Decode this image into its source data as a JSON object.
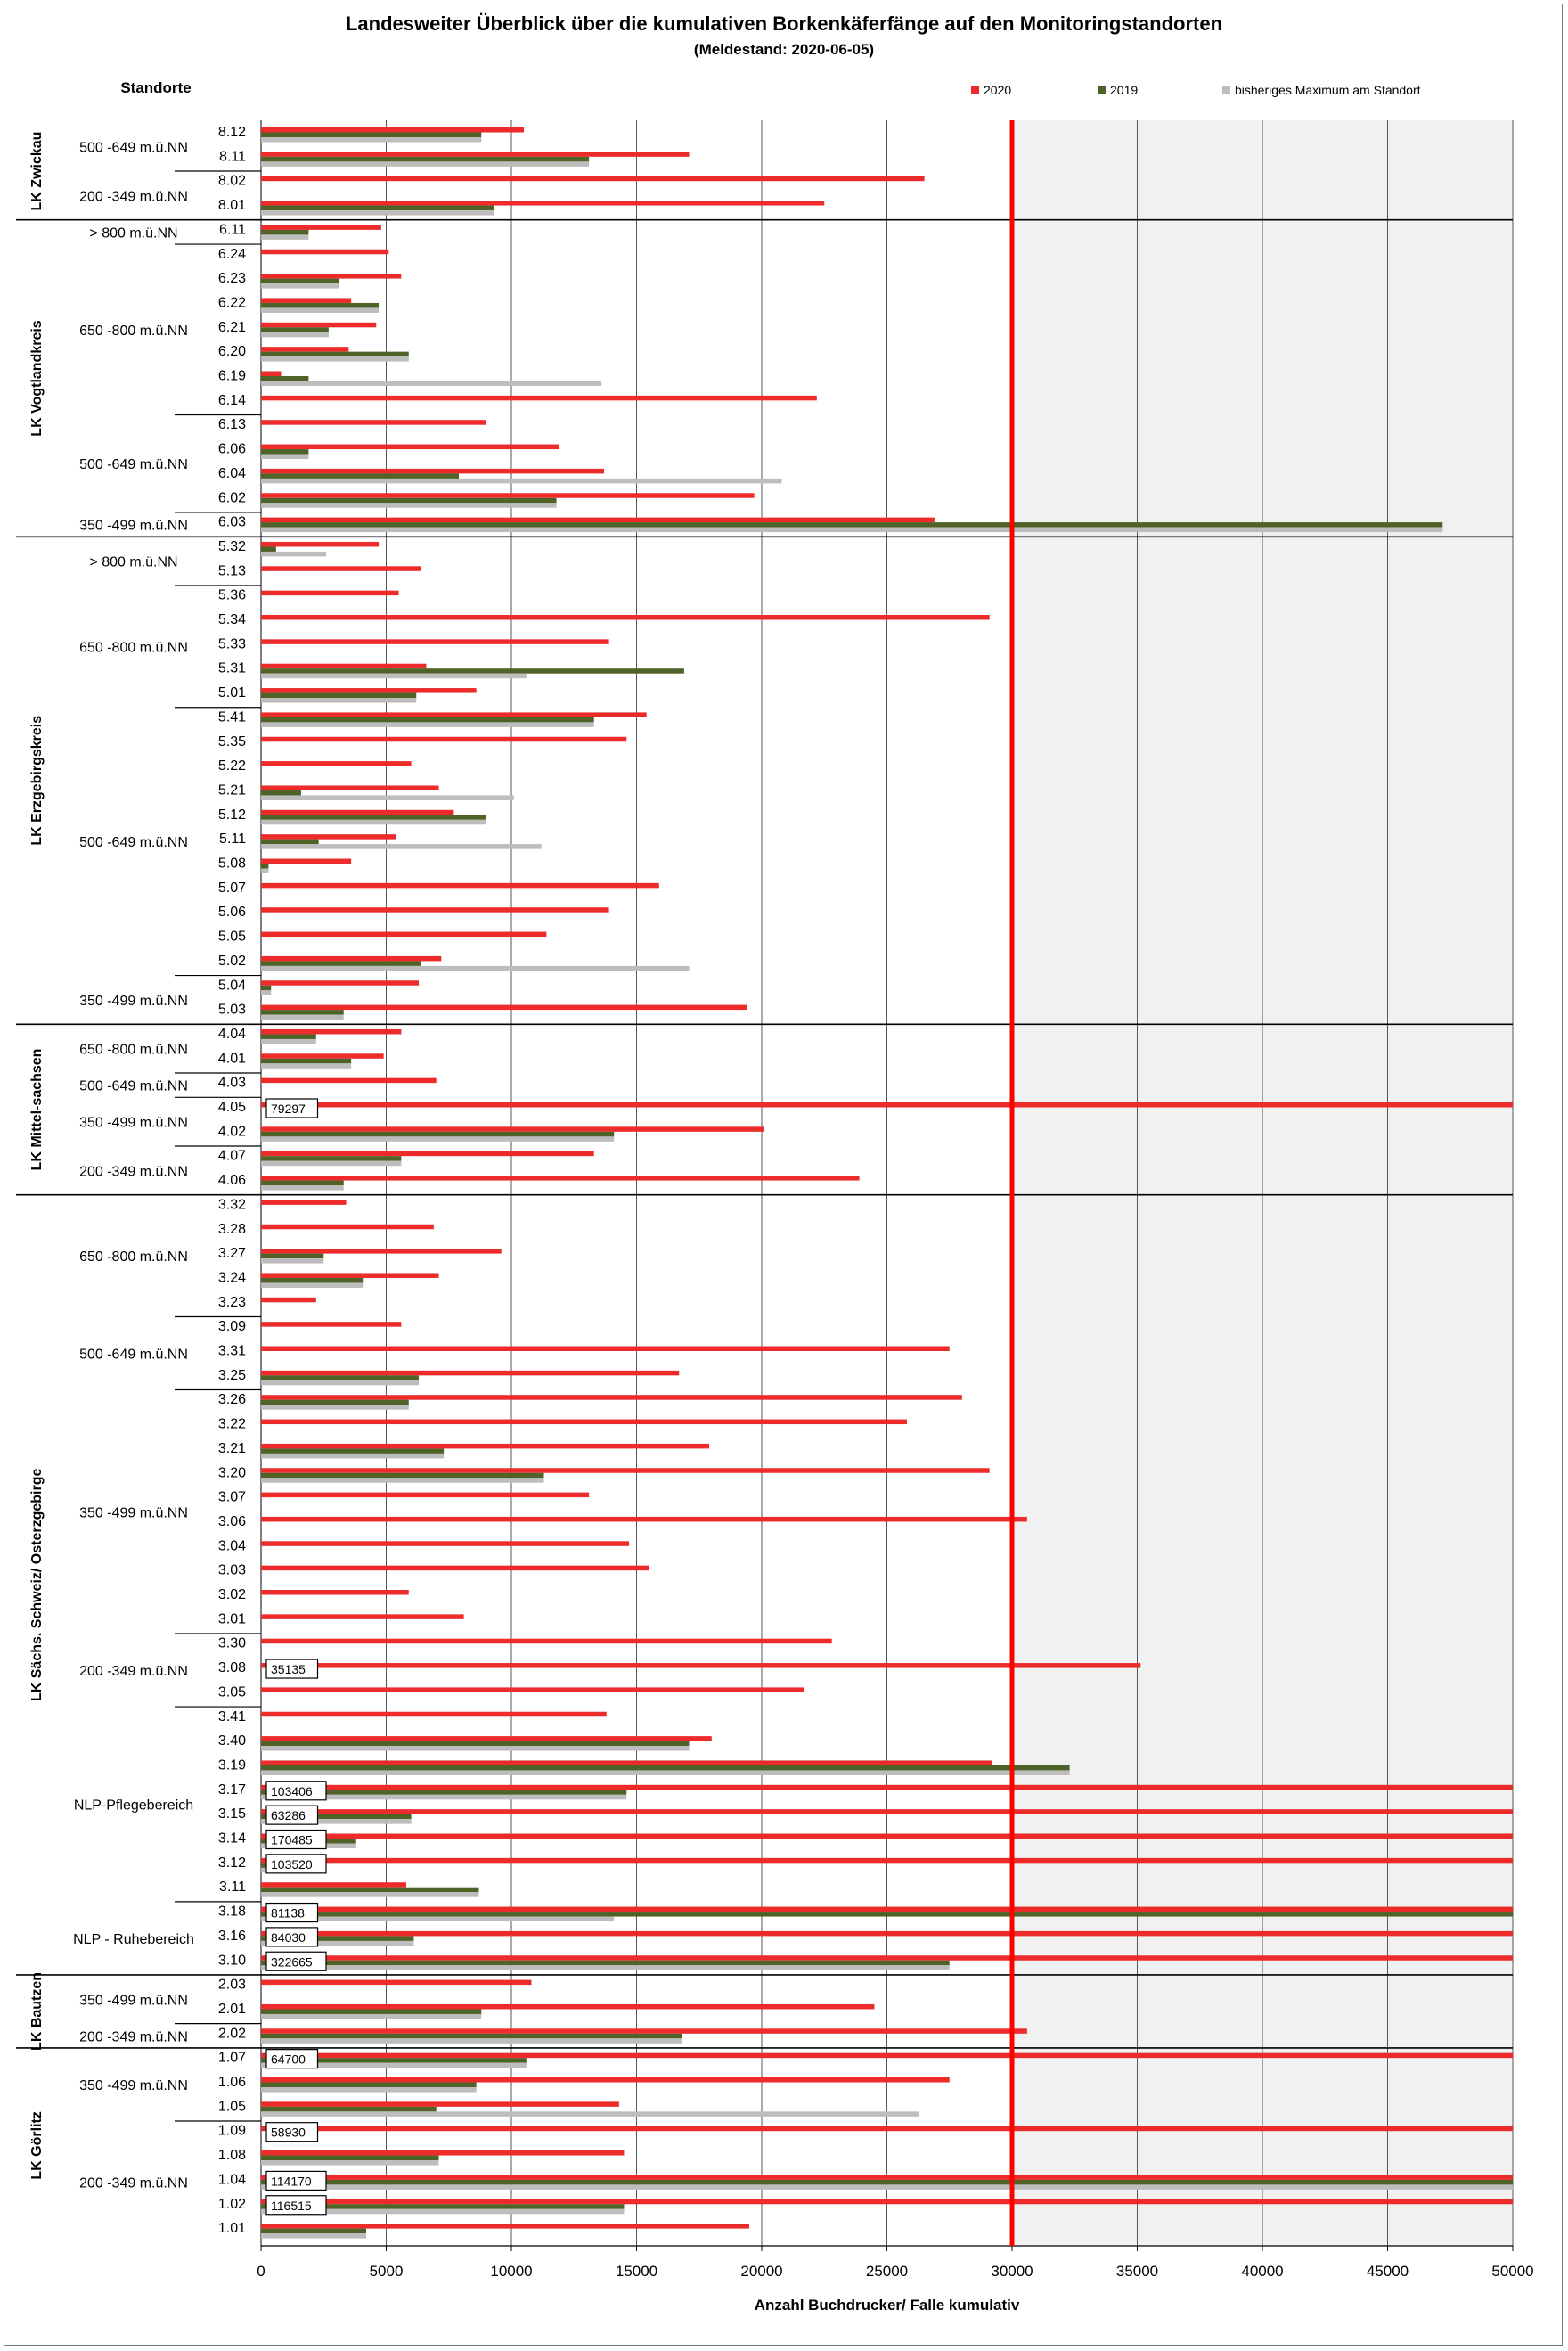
{
  "title": "Landesweiter Überblick über die kumulativen Borkenkäferfänge auf den Monitoringstandorten",
  "subtitle": "(Meldestand: 2020-06-05)",
  "colors": {
    "s2020": "#ee2b2b",
    "s2019": "#4f6228",
    "max": "#bdbdbd",
    "threshold": "#ff0000"
  },
  "chart_data": {
    "type": "bar",
    "orientation": "horizontal",
    "title": "Landesweiter Überblick über die kumulativen Borkenkäferfänge auf den Monitoringstandorten",
    "subtitle": "(Meldestand: 2020-06-05)",
    "xlabel": "Anzahl Buchdrucker/ Falle kumulativ",
    "ylabel": "Standorte",
    "xlim": [
      0,
      50000
    ],
    "xticks": [
      0,
      5000,
      10000,
      15000,
      20000,
      25000,
      30000,
      35000,
      40000,
      45000,
      50000
    ],
    "threshold": 30000,
    "legend_position": "top-right",
    "series_names": [
      "2020",
      "2019",
      "bisheriges Maximum am Standort"
    ],
    "groups": [
      {
        "district": "LK Zwickau",
        "subgroups": [
          {
            "altitude": "500 -649 m.ü.NN",
            "sites": [
              {
                "id": "8.12",
                "v2020": 10500,
                "v2019": 8800,
                "max": 8800
              },
              {
                "id": "8.11",
                "v2020": 17100,
                "v2019": 13100,
                "max": 13100
              }
            ]
          },
          {
            "altitude": "200 -349 m.ü.NN",
            "sites": [
              {
                "id": "8.02",
                "v2020": 26500,
                "v2019": 0,
                "max": 0
              },
              {
                "id": "8.01",
                "v2020": 22500,
                "v2019": 9300,
                "max": 9300
              }
            ]
          }
        ]
      },
      {
        "district": "LK Vogtlandkreis",
        "subgroups": [
          {
            "altitude": "> 800 m.ü.NN",
            "sites": [
              {
                "id": "6.11",
                "v2020": 4800,
                "v2019": 1900,
                "max": 1900
              }
            ]
          },
          {
            "altitude": "650 -800 m.ü.NN",
            "sites": [
              {
                "id": "6.24",
                "v2020": 5100,
                "v2019": 0,
                "max": 0
              },
              {
                "id": "6.23",
                "v2020": 5600,
                "v2019": 3100,
                "max": 3100
              },
              {
                "id": "6.22",
                "v2020": 3600,
                "v2019": 4700,
                "max": 4700
              },
              {
                "id": "6.21",
                "v2020": 4600,
                "v2019": 2700,
                "max": 2700
              },
              {
                "id": "6.20",
                "v2020": 3500,
                "v2019": 5900,
                "max": 5900
              },
              {
                "id": "6.19",
                "v2020": 800,
                "v2019": 1900,
                "max": 13600
              },
              {
                "id": "6.14",
                "v2020": 22200,
                "v2019": 0,
                "max": 0
              }
            ]
          },
          {
            "altitude": "500 -649 m.ü.NN",
            "sites": [
              {
                "id": "6.13",
                "v2020": 9000,
                "v2019": 0,
                "max": 0
              },
              {
                "id": "6.06",
                "v2020": 11900,
                "v2019": 1900,
                "max": 1900
              },
              {
                "id": "6.04",
                "v2020": 13700,
                "v2019": 7900,
                "max": 20800
              },
              {
                "id": "6.02",
                "v2020": 19700,
                "v2019": 11800,
                "max": 11800
              }
            ]
          },
          {
            "altitude": "350 -499 m.ü.NN",
            "sites": [
              {
                "id": "6.03",
                "v2020": 26900,
                "v2019": 47200,
                "max": 47200
              }
            ]
          }
        ]
      },
      {
        "district": "LK Erzgebirgskreis",
        "subgroups": [
          {
            "altitude": "> 800 m.ü.NN",
            "sites": [
              {
                "id": "5.32",
                "v2020": 4700,
                "v2019": 600,
                "max": 2600
              },
              {
                "id": "5.13",
                "v2020": 6400,
                "v2019": 0,
                "max": 0
              }
            ]
          },
          {
            "altitude": "650 -800 m.ü.NN",
            "sites": [
              {
                "id": "5.36",
                "v2020": 5500,
                "v2019": 0,
                "max": 0
              },
              {
                "id": "5.34",
                "v2020": 29100,
                "v2019": 0,
                "max": 0
              },
              {
                "id": "5.33",
                "v2020": 13900,
                "v2019": 0,
                "max": 0
              },
              {
                "id": "5.31",
                "v2020": 6600,
                "v2019": 16900,
                "max": 10600
              },
              {
                "id": "5.01",
                "v2020": 8600,
                "v2019": 6200,
                "max": 6200
              }
            ]
          },
          {
            "altitude": "500 -649 m.ü.NN",
            "sites": [
              {
                "id": "5.41",
                "v2020": 15400,
                "v2019": 13300,
                "max": 13300
              },
              {
                "id": "5.35",
                "v2020": 14600,
                "v2019": 0,
                "max": 0
              },
              {
                "id": "5.22",
                "v2020": 6000,
                "v2019": 0,
                "max": 0
              },
              {
                "id": "5.21",
                "v2020": 7100,
                "v2019": 1600,
                "max": 10100
              },
              {
                "id": "5.12",
                "v2020": 7700,
                "v2019": 9000,
                "max": 9000
              },
              {
                "id": "5.11",
                "v2020": 5400,
                "v2019": 2300,
                "max": 11200
              },
              {
                "id": "5.08",
                "v2020": 3600,
                "v2019": 300,
                "max": 300
              },
              {
                "id": "5.07",
                "v2020": 15900,
                "v2019": 0,
                "max": 0
              },
              {
                "id": "5.06",
                "v2020": 13900,
                "v2019": 0,
                "max": 0
              },
              {
                "id": "5.05",
                "v2020": 11400,
                "v2019": 0,
                "max": 0
              },
              {
                "id": "5.02",
                "v2020": 7200,
                "v2019": 6400,
                "max": 17100
              }
            ]
          },
          {
            "altitude": "350 -499 m.ü.NN",
            "sites": [
              {
                "id": "5.04",
                "v2020": 6300,
                "v2019": 400,
                "max": 400
              },
              {
                "id": "5.03",
                "v2020": 19400,
                "v2019": 3300,
                "max": 3300
              }
            ]
          }
        ]
      },
      {
        "district": "LK Mittel-sachsen",
        "subgroups": [
          {
            "altitude": "650 -800 m.ü.NN",
            "sites": [
              {
                "id": "4.04",
                "v2020": 5600,
                "v2019": 2200,
                "max": 2200
              },
              {
                "id": "4.01",
                "v2020": 4900,
                "v2019": 3600,
                "max": 3600
              }
            ]
          },
          {
            "altitude": "500 -649 m.ü.NN",
            "sites": [
              {
                "id": "4.03",
                "v2020": 7000,
                "v2019": 0,
                "max": 0
              }
            ]
          },
          {
            "altitude": "350 -499 m.ü.NN",
            "sites": [
              {
                "id": "4.05",
                "v2020": 79297,
                "v2019": 0,
                "max": 0,
                "label": "79297"
              },
              {
                "id": "4.02",
                "v2020": 20100,
                "v2019": 14100,
                "max": 14100
              }
            ]
          },
          {
            "altitude": "200 -349 m.ü.NN",
            "sites": [
              {
                "id": "4.07",
                "v2020": 13300,
                "v2019": 5600,
                "max": 5600
              },
              {
                "id": "4.06",
                "v2020": 23900,
                "v2019": 3300,
                "max": 3300
              }
            ]
          }
        ]
      },
      {
        "district": "LK Sächs. Schweiz/ Osterzgebirge",
        "subgroups": [
          {
            "altitude": "650 -800 m.ü.NN",
            "sites": [
              {
                "id": "3.32",
                "v2020": 3400,
                "v2019": 0,
                "max": 0
              },
              {
                "id": "3.28",
                "v2020": 6900,
                "v2019": 0,
                "max": 0
              },
              {
                "id": "3.27",
                "v2020": 9600,
                "v2019": 2500,
                "max": 2500
              },
              {
                "id": "3.24",
                "v2020": 7100,
                "v2019": 4100,
                "max": 4100
              },
              {
                "id": "3.23",
                "v2020": 2200,
                "v2019": 0,
                "max": 0
              }
            ]
          },
          {
            "altitude": "500 -649 m.ü.NN",
            "sites": [
              {
                "id": "3.09",
                "v2020": 5600,
                "v2019": 0,
                "max": 0
              },
              {
                "id": "3.31",
                "v2020": 27500,
                "v2019": 0,
                "max": 0
              },
              {
                "id": "3.25",
                "v2020": 16700,
                "v2019": 6300,
                "max": 6300
              }
            ]
          },
          {
            "altitude": "350 -499 m.ü.NN",
            "sites": [
              {
                "id": "3.26",
                "v2020": 28000,
                "v2019": 5900,
                "max": 5900
              },
              {
                "id": "3.22",
                "v2020": 25800,
                "v2019": 0,
                "max": 0
              },
              {
                "id": "3.21",
                "v2020": 17900,
                "v2019": 7300,
                "max": 7300
              },
              {
                "id": "3.20",
                "v2020": 29100,
                "v2019": 11300,
                "max": 11300
              },
              {
                "id": "3.07",
                "v2020": 13100,
                "v2019": 0,
                "max": 0
              },
              {
                "id": "3.06",
                "v2020": 30600,
                "v2019": 0,
                "max": 0
              },
              {
                "id": "3.04",
                "v2020": 14700,
                "v2019": 0,
                "max": 0
              },
              {
                "id": "3.03",
                "v2020": 15500,
                "v2019": 0,
                "max": 0
              },
              {
                "id": "3.02",
                "v2020": 5900,
                "v2019": 0,
                "max": 0
              },
              {
                "id": "3.01",
                "v2020": 8100,
                "v2019": 0,
                "max": 0
              }
            ]
          },
          {
            "altitude": "200 -349 m.ü.NN",
            "sites": [
              {
                "id": "3.30",
                "v2020": 22800,
                "v2019": 0,
                "max": 0
              },
              {
                "id": "3.08",
                "v2020": 35135,
                "v2019": 0,
                "max": 0,
                "label": "35135"
              },
              {
                "id": "3.05",
                "v2020": 21700,
                "v2019": 0,
                "max": 0
              }
            ]
          },
          {
            "altitude": "NLP-Pflegebereich",
            "sites": [
              {
                "id": "3.41",
                "v2020": 13800,
                "v2019": 0,
                "max": 0
              },
              {
                "id": "3.40",
                "v2020": 18000,
                "v2019": 17100,
                "max": 17100
              },
              {
                "id": "3.19",
                "v2020": 29200,
                "v2019": 32300,
                "max": 32300
              },
              {
                "id": "3.17",
                "v2020": 103406,
                "v2019": 14600,
                "max": 14600,
                "label": "103406"
              },
              {
                "id": "3.15",
                "v2020": 63286,
                "v2019": 6000,
                "max": 6000,
                "label": "63286"
              },
              {
                "id": "3.14",
                "v2020": 170485,
                "v2019": 3800,
                "max": 3800,
                "label": "170485"
              },
              {
                "id": "3.12",
                "v2020": 103520,
                "v2019": 2400,
                "max": 2400,
                "label": "103520"
              },
              {
                "id": "3.11",
                "v2020": 5800,
                "v2019": 8700,
                "max": 8700
              }
            ]
          },
          {
            "altitude": "NLP - Ruhebereich",
            "sites": [
              {
                "id": "3.18",
                "v2020": 81138,
                "v2019": 50000,
                "max": 14100,
                "label": "81138"
              },
              {
                "id": "3.16",
                "v2020": 84030,
                "v2019": 6100,
                "max": 6100,
                "label": "84030"
              },
              {
                "id": "3.10",
                "v2020": 322665,
                "v2019": 27500,
                "max": 27500,
                "label": "322665"
              }
            ]
          }
        ]
      },
      {
        "district": "LK Bautzen",
        "subgroups": [
          {
            "altitude": "350 -499 m.ü.NN",
            "sites": [
              {
                "id": "2.03",
                "v2020": 10800,
                "v2019": 0,
                "max": 0
              },
              {
                "id": "2.01",
                "v2020": 24500,
                "v2019": 8800,
                "max": 8800
              }
            ]
          },
          {
            "altitude": "200 -349 m.ü.NN",
            "sites": [
              {
                "id": "2.02",
                "v2020": 30600,
                "v2019": 16800,
                "max": 16800
              }
            ]
          }
        ]
      },
      {
        "district": "LK Görlitz",
        "subgroups": [
          {
            "altitude": "350 -499 m.ü.NN",
            "sites": [
              {
                "id": "1.07",
                "v2020": 64700,
                "v2019": 10600,
                "max": 10600,
                "label": "64700"
              },
              {
                "id": "1.06",
                "v2020": 27500,
                "v2019": 8600,
                "max": 8600
              },
              {
                "id": "1.05",
                "v2020": 14300,
                "v2019": 7000,
                "max": 26300
              }
            ]
          },
          {
            "altitude": "200 -349 m.ü.NN",
            "sites": [
              {
                "id": "1.09",
                "v2020": 58930,
                "v2019": 0,
                "max": 0,
                "label": "58930"
              },
              {
                "id": "1.08",
                "v2020": 14500,
                "v2019": 7100,
                "max": 7100
              },
              {
                "id": "1.04",
                "v2020": 114170,
                "v2019": 50000,
                "max": 50000,
                "label": "114170"
              },
              {
                "id": "1.02",
                "v2020": 116515,
                "v2019": 14500,
                "max": 14500,
                "label": "116515"
              },
              {
                "id": "1.01",
                "v2020": 19500,
                "v2019": 4200,
                "max": 4200
              }
            ]
          }
        ]
      }
    ]
  }
}
